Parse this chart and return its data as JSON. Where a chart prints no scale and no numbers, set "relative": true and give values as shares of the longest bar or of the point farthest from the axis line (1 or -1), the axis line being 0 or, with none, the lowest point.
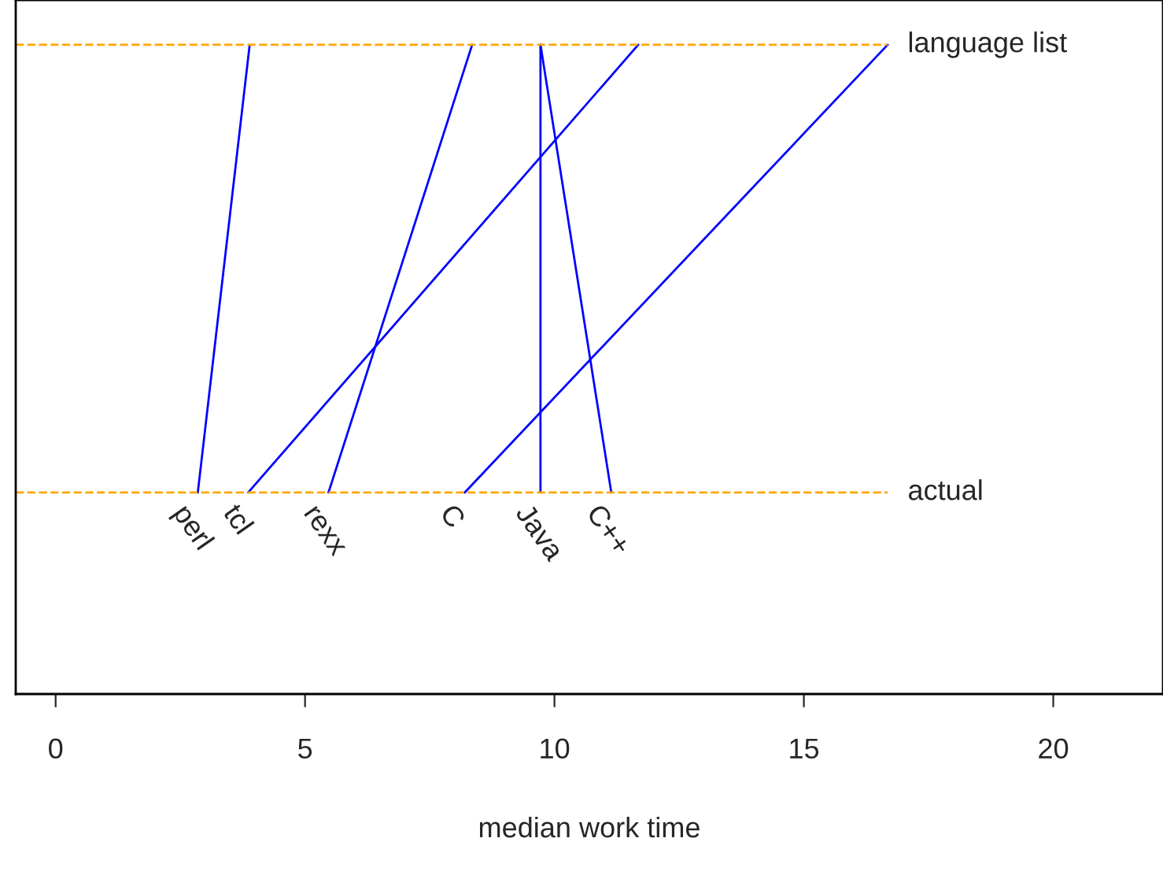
{
  "chart_data": {
    "type": "line",
    "xlabel": "median work time",
    "relative": true,
    "tick_labels": "x",
    "grid": false,
    "legend": false,
    "marker": "none",
    "line_style": "solid",
    "xlim": [
      -0.8,
      22.2
    ],
    "xticks": [
      0,
      5,
      10,
      15,
      20
    ],
    "series": [
      {
        "name": "perl",
        "color": "#0000ff",
        "x": [
          2.85,
          3.89
        ],
        "values": [
          0,
          1
        ]
      },
      {
        "name": "tcl",
        "color": "#0000ff",
        "x": [
          3.86,
          11.68
        ],
        "values": [
          0,
          1
        ]
      },
      {
        "name": "rexx",
        "color": "#0000ff",
        "x": [
          5.47,
          8.35
        ],
        "values": [
          0,
          1
        ]
      },
      {
        "name": "C",
        "color": "#0000ff",
        "x": [
          8.2,
          16.68
        ],
        "values": [
          0,
          1
        ]
      },
      {
        "name": "Java",
        "color": "#0000ff",
        "x": [
          9.72,
          9.72
        ],
        "values": [
          0,
          1
        ]
      },
      {
        "name": "C++",
        "color": "#0000ff",
        "x": [
          11.14,
          9.72
        ],
        "values": [
          0,
          1
        ]
      }
    ],
    "ref_lines": [
      {
        "axis": "y",
        "value": 1,
        "label": "language list",
        "color": "#ffa500",
        "line_style": "dashed"
      },
      {
        "axis": "y",
        "value": 0,
        "label": "actual",
        "color": "#ffa500",
        "line_style": "dashed"
      }
    ]
  }
}
